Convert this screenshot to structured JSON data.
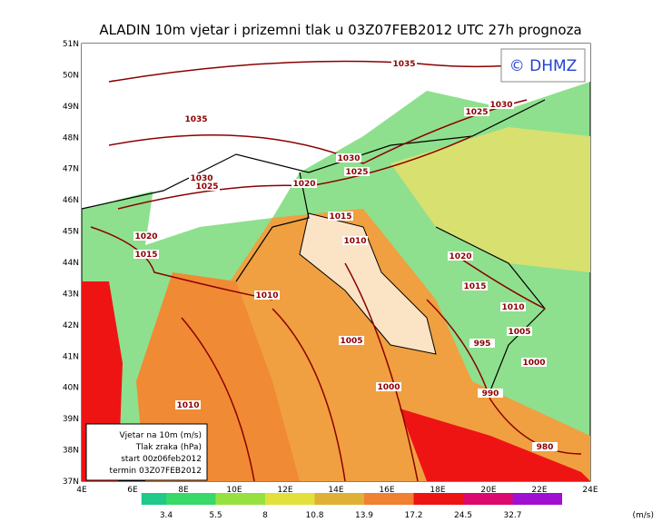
{
  "header": {
    "title": "ALADIN 10m vjetar i prizemni tlak u 03Z07FEB2012 UTC 27h prognoza",
    "copyright": "© DHMZ"
  },
  "lat_labels": [
    "51N",
    "50N",
    "49N",
    "48N",
    "47N",
    "46N",
    "45N",
    "44N",
    "43N",
    "42N",
    "41N",
    "40N",
    "39N",
    "38N",
    "37N"
  ],
  "lon_labels": [
    "4E",
    "6E",
    "8E",
    "10E",
    "12E",
    "14E",
    "16E",
    "18E",
    "20E",
    "22E",
    "24E"
  ],
  "isobar_labels": [
    "1035",
    "1035",
    "1030",
    "1025",
    "1030",
    "1025",
    "1020",
    "1030",
    "1025",
    "1015",
    "1010",
    "1020",
    "1015",
    "1020",
    "1015",
    "1010",
    "1010",
    "1005",
    "1005",
    "995",
    "1000",
    "1000",
    "990",
    "1010",
    "980"
  ],
  "legend_box": [
    "Vjetar na 10m (m/s)",
    "Tlak zraka (hPa)",
    "start 00z06feb2012",
    "termin 03Z07FEB2012"
  ],
  "colorbar": {
    "labels": [
      "3.4",
      "5.5",
      "8",
      "10.8",
      "13.9",
      "17.2",
      "24.5",
      "32.7"
    ],
    "unit": "(m/s)",
    "colors": [
      "#1fc98a",
      "#38d86a",
      "#96e040",
      "#e2e03a",
      "#e0b034",
      "#f08032",
      "#ee1414",
      "#dc0a6e",
      "#a010d0"
    ]
  }
}
